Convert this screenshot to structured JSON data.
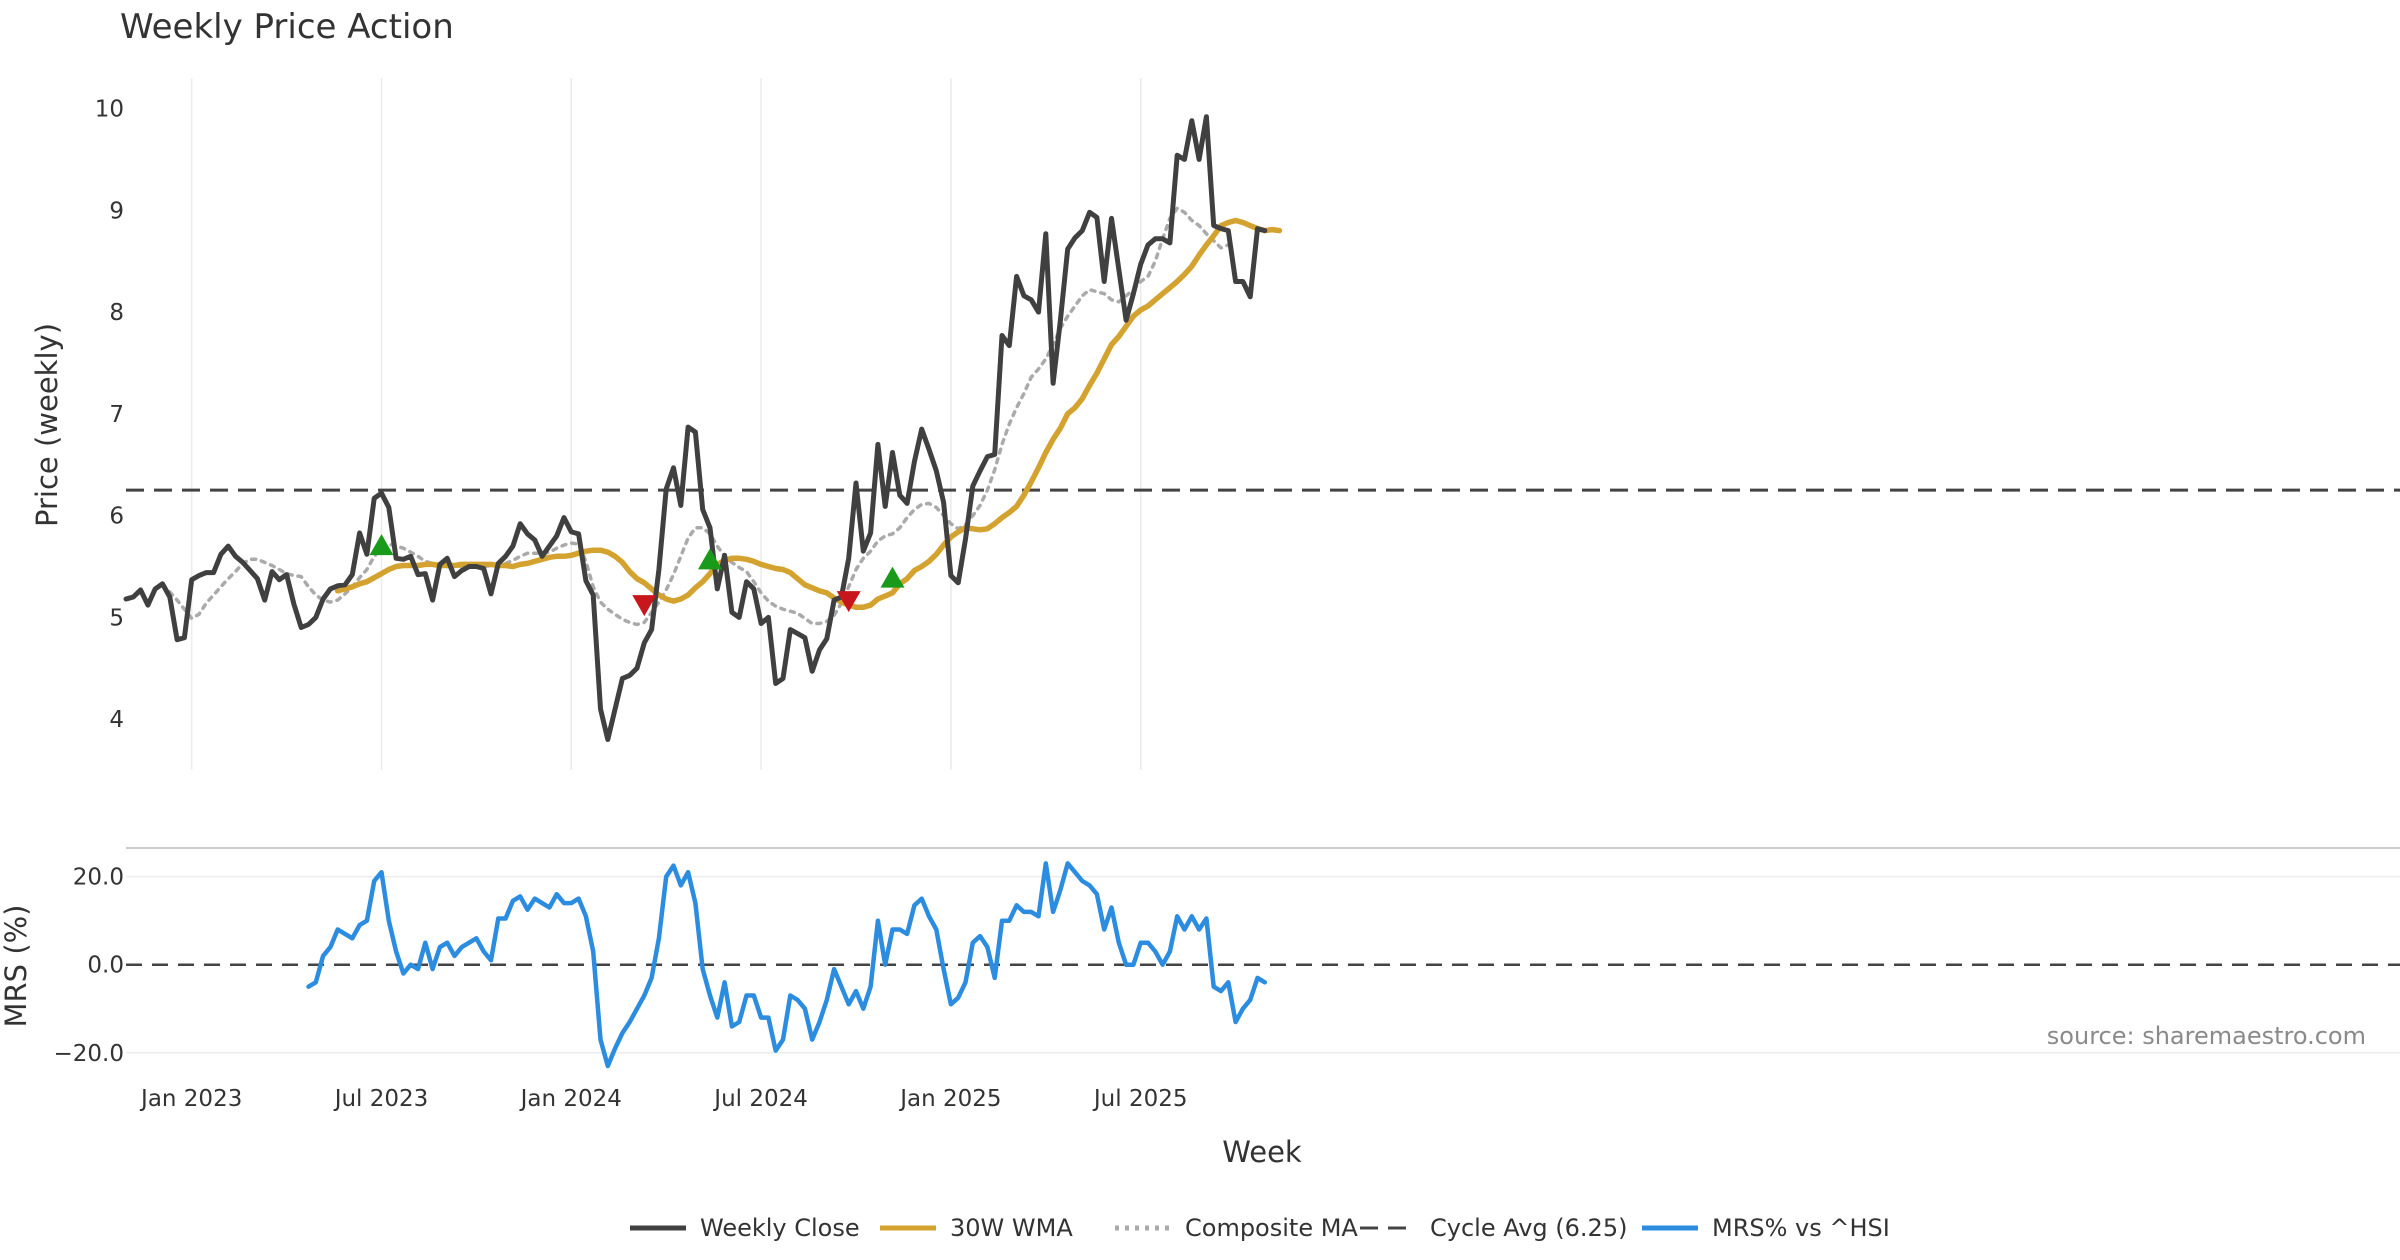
{
  "chart_data": [
    {
      "type": "line",
      "title": "Weekly Price Action",
      "xlabel": "Week",
      "ylabel": "Price (weekly)",
      "ylim": [
        3.5,
        10.3
      ],
      "yticks": [
        4,
        5,
        6,
        7,
        8,
        9,
        10
      ],
      "x_start": "2022-10-31",
      "x_step": "1 week",
      "x_ticks": [
        "Jan 2023",
        "Jul 2023",
        "Jan 2024",
        "Jul 2024",
        "Jan 2025",
        "Jul 2025"
      ],
      "x_tick_weeks": [
        9,
        35,
        61,
        87,
        113,
        139
      ],
      "grid": "vertical",
      "reference_line": {
        "name": "Cycle Avg (6.25)",
        "value": 6.25
      },
      "series": [
        {
          "name": "Weekly Close",
          "color": "#404040",
          "style": "solid",
          "start_week": 0,
          "values": [
            5.18,
            5.2,
            5.27,
            5.12,
            5.28,
            5.33,
            5.2,
            4.78,
            4.8,
            5.37,
            5.41,
            5.44,
            5.44,
            5.62,
            5.7,
            5.6,
            5.54,
            5.46,
            5.38,
            5.17,
            5.45,
            5.37,
            5.42,
            5.13,
            4.9,
            4.93,
            5.0,
            5.18,
            5.28,
            5.31,
            5.32,
            5.42,
            5.83,
            5.62,
            6.17,
            6.22,
            6.08,
            5.58,
            5.57,
            5.6,
            5.42,
            5.43,
            5.17,
            5.52,
            5.58,
            5.4,
            5.46,
            5.5,
            5.5,
            5.48,
            5.23,
            5.53,
            5.6,
            5.7,
            5.92,
            5.82,
            5.76,
            5.6,
            5.7,
            5.8,
            5.98,
            5.84,
            5.82,
            5.36,
            5.22,
            4.1,
            3.8,
            4.1,
            4.4,
            4.43,
            4.5,
            4.75,
            4.88,
            5.47,
            6.26,
            6.47,
            6.1,
            6.87,
            6.82,
            6.06,
            5.88,
            5.28,
            5.61,
            5.05,
            5.0,
            5.35,
            5.28,
            4.94,
            5.0,
            4.35,
            4.4,
            4.88,
            4.84,
            4.8,
            4.47,
            4.68,
            4.79,
            5.17,
            5.2,
            5.58,
            6.32,
            5.65,
            5.83,
            6.7,
            6.09,
            6.62,
            6.2,
            6.12,
            6.53,
            6.85,
            6.65,
            6.44,
            6.13,
            5.41,
            5.34,
            5.77,
            6.29,
            6.44,
            6.58,
            6.6,
            7.77,
            7.67,
            8.35,
            8.16,
            8.12,
            8.0,
            8.77,
            7.3,
            7.92,
            8.62,
            8.73,
            8.8,
            8.98,
            8.93,
            8.3,
            8.92,
            8.42,
            7.92,
            8.18,
            8.47,
            8.66,
            8.72,
            8.72,
            8.68,
            9.54,
            9.5,
            9.88,
            9.5,
            9.92,
            8.85,
            8.82,
            8.8,
            8.3,
            8.3,
            8.15,
            8.82,
            8.8
          ]
        },
        {
          "name": "30W WMA",
          "color": "#d4a22e",
          "style": "solid",
          "start_week": 29,
          "values": [
            5.26,
            5.28,
            5.3,
            5.33,
            5.35,
            5.39,
            5.43,
            5.47,
            5.5,
            5.51,
            5.51,
            5.51,
            5.52,
            5.52,
            5.51,
            5.51,
            5.51,
            5.52,
            5.52,
            5.52,
            5.52,
            5.52,
            5.51,
            5.51,
            5.5,
            5.52,
            5.53,
            5.55,
            5.57,
            5.59,
            5.6,
            5.6,
            5.61,
            5.63,
            5.65,
            5.66,
            5.66,
            5.64,
            5.6,
            5.54,
            5.45,
            5.38,
            5.34,
            5.28,
            5.22,
            5.18,
            5.16,
            5.18,
            5.22,
            5.29,
            5.35,
            5.43,
            5.52,
            5.56,
            5.58,
            5.58,
            5.57,
            5.55,
            5.52,
            5.5,
            5.48,
            5.47,
            5.44,
            5.38,
            5.32,
            5.29,
            5.26,
            5.24,
            5.19,
            5.15,
            5.12,
            5.1,
            5.1,
            5.12,
            5.18,
            5.21,
            5.24,
            5.33,
            5.38,
            5.46,
            5.5,
            5.55,
            5.62,
            5.71,
            5.79,
            5.84,
            5.88,
            5.87,
            5.86,
            5.87,
            5.92,
            5.98,
            6.03,
            6.09,
            6.2,
            6.33,
            6.47,
            6.62,
            6.75,
            6.86,
            7.0,
            7.06,
            7.15,
            7.28,
            7.4,
            7.54,
            7.68,
            7.76,
            7.86,
            7.96,
            8.02,
            8.06,
            8.12,
            8.18,
            8.24,
            8.3,
            8.37,
            8.45,
            8.56,
            8.66,
            8.75,
            8.85,
            8.88,
            8.9,
            8.88,
            8.85,
            8.82,
            8.8,
            8.81,
            8.8
          ]
        },
        {
          "name": "Composite MA",
          "color": "#aaaaaa",
          "style": "dotted",
          "start_week": 6,
          "values": [
            5.25,
            5.17,
            5.08,
            4.99,
            5.03,
            5.14,
            5.22,
            5.3,
            5.38,
            5.45,
            5.53,
            5.57,
            5.57,
            5.54,
            5.51,
            5.47,
            5.43,
            5.41,
            5.4,
            5.3,
            5.22,
            5.17,
            5.15,
            5.17,
            5.23,
            5.3,
            5.39,
            5.47,
            5.6,
            5.68,
            5.72,
            5.7,
            5.68,
            5.64,
            5.6,
            5.55,
            5.53,
            5.51,
            5.5,
            5.51,
            5.5,
            5.5,
            5.5,
            5.5,
            5.51,
            5.52,
            5.53,
            5.56,
            5.6,
            5.63,
            5.63,
            5.63,
            5.64,
            5.68,
            5.71,
            5.73,
            5.72,
            5.55,
            5.3,
            5.15,
            5.08,
            5.03,
            4.98,
            4.95,
            4.93,
            4.95,
            5.05,
            5.15,
            5.27,
            5.42,
            5.6,
            5.78,
            5.88,
            5.88,
            5.82,
            5.7,
            5.6,
            5.54,
            5.49,
            5.45,
            5.35,
            5.24,
            5.16,
            5.11,
            5.08,
            5.06,
            5.04,
            4.99,
            4.94,
            4.94,
            4.96,
            5.02,
            5.14,
            5.3,
            5.47,
            5.58,
            5.65,
            5.75,
            5.8,
            5.82,
            5.88,
            5.98,
            6.06,
            6.11,
            6.12,
            6.08,
            6.0,
            5.92,
            5.87,
            5.91,
            6.0,
            6.1,
            6.25,
            6.45,
            6.7,
            6.9,
            7.06,
            7.2,
            7.36,
            7.44,
            7.54,
            7.68,
            7.84,
            7.96,
            8.06,
            8.16,
            8.22,
            8.2,
            8.18,
            8.12,
            8.1,
            8.16,
            8.22,
            8.3,
            8.35,
            8.5,
            8.72,
            8.92,
            9.02,
            8.98,
            8.9,
            8.85,
            8.77,
            8.7,
            8.63,
            8.66
          ]
        }
      ],
      "signals": [
        {
          "direction": "up",
          "week": 35,
          "value": 5.71,
          "color": "#1a9a1a"
        },
        {
          "direction": "down",
          "week": 71,
          "value": 5.12,
          "color": "#c8161d"
        },
        {
          "direction": "up",
          "week": 80,
          "value": 5.57,
          "color": "#1a9a1a"
        },
        {
          "direction": "down",
          "week": 99,
          "value": 5.16,
          "color": "#c8161d"
        },
        {
          "direction": "up",
          "week": 105,
          "value": 5.39,
          "color": "#1a9a1a"
        }
      ]
    },
    {
      "type": "line",
      "title": "",
      "ylabel": "MRS (%)",
      "ylim": [
        -23,
        26.5
      ],
      "yticks": [
        -20,
        0,
        20
      ],
      "ytick_labels": [
        "−20.0",
        "0.0",
        "20.0"
      ],
      "grid": "horizontal",
      "reference_line": {
        "name": "zero",
        "value": 0
      },
      "series": [
        {
          "name": "MRS% vs ^HSI",
          "color": "#2b8ce0",
          "style": "solid",
          "start_week": 25,
          "values": [
            -5,
            -4,
            2,
            4,
            8,
            7,
            6,
            9,
            10,
            19,
            21,
            10,
            3,
            -2,
            0,
            -1,
            5,
            -1,
            4,
            5,
            2,
            4,
            5,
            6,
            3,
            1,
            10.5,
            10.5,
            14.5,
            15.5,
            12.5,
            15,
            14,
            13,
            16,
            14,
            14,
            15,
            11,
            3,
            -17,
            -23,
            -19,
            -15.5,
            -13,
            -10,
            -7,
            -3,
            6,
            20,
            22.5,
            18,
            21,
            14,
            -1,
            -7,
            -12,
            -4,
            -14,
            -13,
            -7,
            -7,
            -12,
            -12,
            -19.5,
            -17,
            -7,
            -8,
            -10,
            -17,
            -13,
            -8,
            -1,
            -5,
            -9,
            -6,
            -10,
            -5,
            10,
            0,
            8,
            8,
            7,
            13.5,
            15,
            11,
            8,
            -1,
            -9,
            -7.5,
            -4,
            5,
            6.5,
            4,
            -3,
            10,
            10,
            13.5,
            12,
            12,
            11,
            23,
            12,
            17,
            23,
            21,
            19,
            18,
            16,
            8,
            13,
            5,
            0,
            0,
            5,
            5,
            3,
            0,
            3,
            11,
            8,
            11,
            8,
            10.5,
            -5,
            -6,
            -4,
            -13,
            -10,
            -8,
            -3,
            -4
          ]
        }
      ],
      "annotation": "source: sharemaestro.com"
    }
  ],
  "x_axis": {
    "title": "Week",
    "tick_labels": [
      "Jan 2023",
      "Jul 2023",
      "Jan 2024",
      "Jul 2024",
      "Jan 2025",
      "Jul 2025"
    ]
  },
  "legend": {
    "placement": "bottom-center",
    "items": [
      {
        "label": "Weekly Close",
        "color": "#404040",
        "style": "solid"
      },
      {
        "label": "30W WMA",
        "color": "#d4a22e",
        "style": "solid"
      },
      {
        "label": "Composite MA",
        "color": "#aaaaaa",
        "style": "dotted"
      },
      {
        "label": "Cycle Avg (6.25)",
        "color": "#444444",
        "style": "dashed"
      },
      {
        "label": "MRS% vs ^HSI",
        "color": "#2b8ce0",
        "style": "solid"
      }
    ]
  }
}
